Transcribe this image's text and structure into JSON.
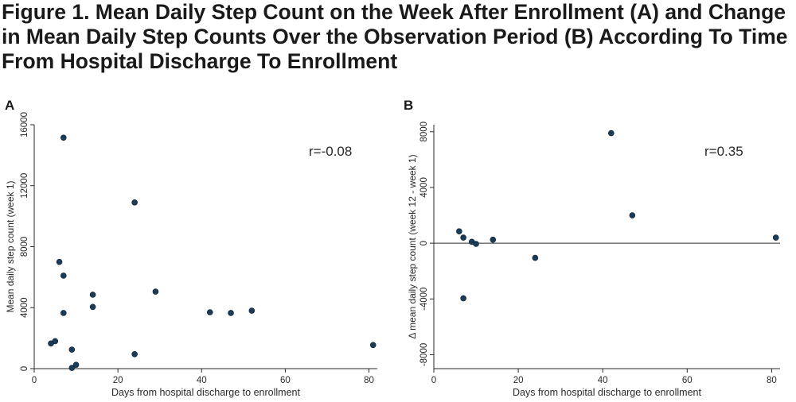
{
  "figure": {
    "title": "Figure 1. Mean Daily Step Count on the Week After Enrollment (A) and Change in Mean Daily Step Counts Over the Observation Period (B) According To Time From Hospital Discharge To Enrollment"
  },
  "chart_data": [
    {
      "panel": "A",
      "type": "scatter",
      "xlabel": "Days from hospital discharge to enrollment",
      "ylabel": "Mean daily step count (week 1)",
      "annotation": "r=-0.08",
      "xlim": [
        0,
        82
      ],
      "ylim": [
        0,
        16000
      ],
      "xticks": [
        0,
        20,
        40,
        60,
        80
      ],
      "yticks": [
        0,
        4000,
        8000,
        12000,
        16000
      ],
      "grid": false,
      "points": [
        {
          "x": 4,
          "y": 1650
        },
        {
          "x": 5,
          "y": 1800
        },
        {
          "x": 6,
          "y": 7000
        },
        {
          "x": 7,
          "y": 15150
        },
        {
          "x": 7,
          "y": 6100
        },
        {
          "x": 7,
          "y": 3650
        },
        {
          "x": 9,
          "y": 1250
        },
        {
          "x": 9,
          "y": 50
        },
        {
          "x": 10,
          "y": 250
        },
        {
          "x": 14,
          "y": 4850
        },
        {
          "x": 14,
          "y": 4050
        },
        {
          "x": 24,
          "y": 10900
        },
        {
          "x": 24,
          "y": 950
        },
        {
          "x": 29,
          "y": 5050
        },
        {
          "x": 42,
          "y": 3700
        },
        {
          "x": 47,
          "y": 3650
        },
        {
          "x": 52,
          "y": 3800
        },
        {
          "x": 81,
          "y": 1550
        }
      ]
    },
    {
      "panel": "B",
      "type": "scatter",
      "xlabel": "Days from hospital discharge to enrollment",
      "ylabel": "Δ mean daily step count (week 12 - week 1)",
      "annotation": "r=0.35",
      "xlim": [
        0,
        82
      ],
      "ylim": [
        -9000,
        8500
      ],
      "xticks": [
        0,
        20,
        40,
        60,
        80
      ],
      "yticks": [
        -8000,
        -4000,
        0,
        4000,
        8000
      ],
      "reference_line_y": 0,
      "grid": false,
      "points": [
        {
          "x": 6,
          "y": 850
        },
        {
          "x": 7,
          "y": 400
        },
        {
          "x": 7,
          "y": -3950
        },
        {
          "x": 9,
          "y": 100
        },
        {
          "x": 10,
          "y": -50
        },
        {
          "x": 14,
          "y": 250
        },
        {
          "x": 24,
          "y": -1050
        },
        {
          "x": 42,
          "y": 7900
        },
        {
          "x": 47,
          "y": 2000
        },
        {
          "x": 81,
          "y": 400
        }
      ]
    }
  ]
}
